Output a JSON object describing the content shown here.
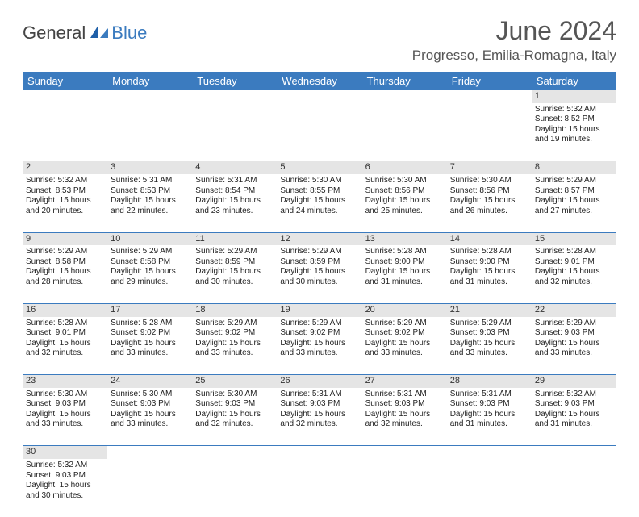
{
  "brand": {
    "part1": "General",
    "part2": "Blue"
  },
  "title": "June 2024",
  "location": "Progresso, Emilia-Romagna, Italy",
  "colors": {
    "header_bg": "#3b7bbf",
    "daynum_bg": "#e5e5e5",
    "row_divider": "#3b7bbf",
    "text": "#222222"
  },
  "weekday_labels": [
    "Sunday",
    "Monday",
    "Tuesday",
    "Wednesday",
    "Thursday",
    "Friday",
    "Saturday"
  ],
  "weeks": [
    [
      null,
      null,
      null,
      null,
      null,
      null,
      {
        "n": "1",
        "sr": "Sunrise: 5:32 AM",
        "ss": "Sunset: 8:52 PM",
        "d1": "Daylight: 15 hours",
        "d2": "and 19 minutes."
      }
    ],
    [
      {
        "n": "2",
        "sr": "Sunrise: 5:32 AM",
        "ss": "Sunset: 8:53 PM",
        "d1": "Daylight: 15 hours",
        "d2": "and 20 minutes."
      },
      {
        "n": "3",
        "sr": "Sunrise: 5:31 AM",
        "ss": "Sunset: 8:53 PM",
        "d1": "Daylight: 15 hours",
        "d2": "and 22 minutes."
      },
      {
        "n": "4",
        "sr": "Sunrise: 5:31 AM",
        "ss": "Sunset: 8:54 PM",
        "d1": "Daylight: 15 hours",
        "d2": "and 23 minutes."
      },
      {
        "n": "5",
        "sr": "Sunrise: 5:30 AM",
        "ss": "Sunset: 8:55 PM",
        "d1": "Daylight: 15 hours",
        "d2": "and 24 minutes."
      },
      {
        "n": "6",
        "sr": "Sunrise: 5:30 AM",
        "ss": "Sunset: 8:56 PM",
        "d1": "Daylight: 15 hours",
        "d2": "and 25 minutes."
      },
      {
        "n": "7",
        "sr": "Sunrise: 5:30 AM",
        "ss": "Sunset: 8:56 PM",
        "d1": "Daylight: 15 hours",
        "d2": "and 26 minutes."
      },
      {
        "n": "8",
        "sr": "Sunrise: 5:29 AM",
        "ss": "Sunset: 8:57 PM",
        "d1": "Daylight: 15 hours",
        "d2": "and 27 minutes."
      }
    ],
    [
      {
        "n": "9",
        "sr": "Sunrise: 5:29 AM",
        "ss": "Sunset: 8:58 PM",
        "d1": "Daylight: 15 hours",
        "d2": "and 28 minutes."
      },
      {
        "n": "10",
        "sr": "Sunrise: 5:29 AM",
        "ss": "Sunset: 8:58 PM",
        "d1": "Daylight: 15 hours",
        "d2": "and 29 minutes."
      },
      {
        "n": "11",
        "sr": "Sunrise: 5:29 AM",
        "ss": "Sunset: 8:59 PM",
        "d1": "Daylight: 15 hours",
        "d2": "and 30 minutes."
      },
      {
        "n": "12",
        "sr": "Sunrise: 5:29 AM",
        "ss": "Sunset: 8:59 PM",
        "d1": "Daylight: 15 hours",
        "d2": "and 30 minutes."
      },
      {
        "n": "13",
        "sr": "Sunrise: 5:28 AM",
        "ss": "Sunset: 9:00 PM",
        "d1": "Daylight: 15 hours",
        "d2": "and 31 minutes."
      },
      {
        "n": "14",
        "sr": "Sunrise: 5:28 AM",
        "ss": "Sunset: 9:00 PM",
        "d1": "Daylight: 15 hours",
        "d2": "and 31 minutes."
      },
      {
        "n": "15",
        "sr": "Sunrise: 5:28 AM",
        "ss": "Sunset: 9:01 PM",
        "d1": "Daylight: 15 hours",
        "d2": "and 32 minutes."
      }
    ],
    [
      {
        "n": "16",
        "sr": "Sunrise: 5:28 AM",
        "ss": "Sunset: 9:01 PM",
        "d1": "Daylight: 15 hours",
        "d2": "and 32 minutes."
      },
      {
        "n": "17",
        "sr": "Sunrise: 5:28 AM",
        "ss": "Sunset: 9:02 PM",
        "d1": "Daylight: 15 hours",
        "d2": "and 33 minutes."
      },
      {
        "n": "18",
        "sr": "Sunrise: 5:29 AM",
        "ss": "Sunset: 9:02 PM",
        "d1": "Daylight: 15 hours",
        "d2": "and 33 minutes."
      },
      {
        "n": "19",
        "sr": "Sunrise: 5:29 AM",
        "ss": "Sunset: 9:02 PM",
        "d1": "Daylight: 15 hours",
        "d2": "and 33 minutes."
      },
      {
        "n": "20",
        "sr": "Sunrise: 5:29 AM",
        "ss": "Sunset: 9:02 PM",
        "d1": "Daylight: 15 hours",
        "d2": "and 33 minutes."
      },
      {
        "n": "21",
        "sr": "Sunrise: 5:29 AM",
        "ss": "Sunset: 9:03 PM",
        "d1": "Daylight: 15 hours",
        "d2": "and 33 minutes."
      },
      {
        "n": "22",
        "sr": "Sunrise: 5:29 AM",
        "ss": "Sunset: 9:03 PM",
        "d1": "Daylight: 15 hours",
        "d2": "and 33 minutes."
      }
    ],
    [
      {
        "n": "23",
        "sr": "Sunrise: 5:30 AM",
        "ss": "Sunset: 9:03 PM",
        "d1": "Daylight: 15 hours",
        "d2": "and 33 minutes."
      },
      {
        "n": "24",
        "sr": "Sunrise: 5:30 AM",
        "ss": "Sunset: 9:03 PM",
        "d1": "Daylight: 15 hours",
        "d2": "and 33 minutes."
      },
      {
        "n": "25",
        "sr": "Sunrise: 5:30 AM",
        "ss": "Sunset: 9:03 PM",
        "d1": "Daylight: 15 hours",
        "d2": "and 32 minutes."
      },
      {
        "n": "26",
        "sr": "Sunrise: 5:31 AM",
        "ss": "Sunset: 9:03 PM",
        "d1": "Daylight: 15 hours",
        "d2": "and 32 minutes."
      },
      {
        "n": "27",
        "sr": "Sunrise: 5:31 AM",
        "ss": "Sunset: 9:03 PM",
        "d1": "Daylight: 15 hours",
        "d2": "and 32 minutes."
      },
      {
        "n": "28",
        "sr": "Sunrise: 5:31 AM",
        "ss": "Sunset: 9:03 PM",
        "d1": "Daylight: 15 hours",
        "d2": "and 31 minutes."
      },
      {
        "n": "29",
        "sr": "Sunrise: 5:32 AM",
        "ss": "Sunset: 9:03 PM",
        "d1": "Daylight: 15 hours",
        "d2": "and 31 minutes."
      }
    ],
    [
      {
        "n": "30",
        "sr": "Sunrise: 5:32 AM",
        "ss": "Sunset: 9:03 PM",
        "d1": "Daylight: 15 hours",
        "d2": "and 30 minutes."
      },
      null,
      null,
      null,
      null,
      null,
      null
    ]
  ]
}
